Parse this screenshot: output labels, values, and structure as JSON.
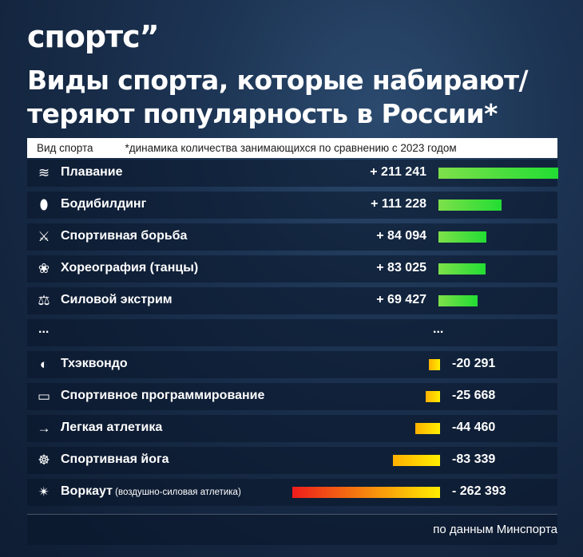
{
  "brand": {
    "logo": "спортс”"
  },
  "title": "Виды спорта, которые набирают/ теряют популярность в России*",
  "header": {
    "col1": "Вид спорта",
    "col2": "*динамика количества занимающихся по сравнению с 2023 годом"
  },
  "ellipsis": "...",
  "footer": "по данным Минспорта",
  "colors": {
    "positive_start": "#7ee04a",
    "positive_end": "#22dd33",
    "negative_start": "#ffee00",
    "negative_end": "#ee1c1c"
  },
  "chart_data": {
    "type": "bar",
    "title": "Виды спорта, которые набирают/ теряют популярность в России*",
    "categories": [
      "Плавание",
      "Бодибилдинг",
      "Спортивная борьба",
      "Хореография (танцы)",
      "Силовой экстрим",
      "Тхэквондо",
      "Спортивное программирование",
      "Легкая атлетика",
      "Спортивная йога",
      "Воркаут"
    ],
    "values": [
      211241,
      111228,
      84094,
      83025,
      69427,
      -20291,
      -25668,
      -44460,
      -83339,
      -262393
    ],
    "value_labels": [
      "+ 211 241",
      "+ 111 228",
      "+ 84 094",
      "+ 83 025",
      "+ 69 427",
      "-20 291",
      "-25 668",
      "-44 460",
      "-83 339",
      "- 262 393"
    ],
    "subtitles": [
      "",
      "",
      "",
      "",
      "",
      "",
      "",
      "",
      "",
      "(воздушно-силовая атлетика)"
    ],
    "icons": [
      "swimmer-icon",
      "bicep-icon",
      "wrestlers-icon",
      "dancer-icon",
      "weightlifter-icon",
      "taekwondo-icon",
      "laptop-icon",
      "runner-icon",
      "yoga-icon",
      "workout-icon"
    ]
  }
}
